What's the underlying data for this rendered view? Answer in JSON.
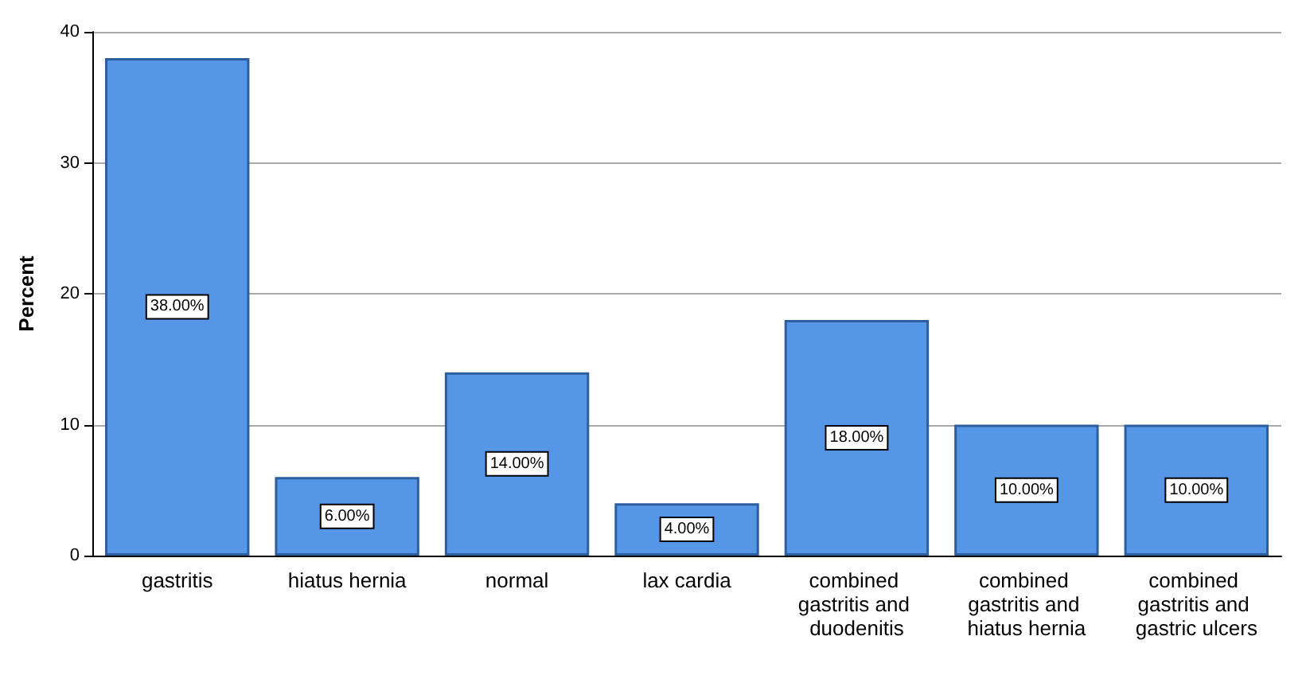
{
  "chart_data": {
    "type": "bar",
    "ylabel": "Percent",
    "categories": [
      "gastritis",
      "hiatus hernia",
      "normal",
      "lax cardia",
      "combined gastritis and duodenitis",
      "combined gastritis and hiatus hernia",
      "combined gastritis and gastric ulcers"
    ],
    "values": [
      38,
      6,
      14,
      4,
      18,
      10,
      10
    ],
    "value_labels": [
      "38.00%",
      "6.00%",
      "14.00%",
      "4.00%",
      "18.00%",
      "10.00%",
      "10.00%"
    ],
    "color": "#5596e6",
    "ylim": [
      0,
      40
    ],
    "yticks": [
      0,
      10,
      20,
      30,
      40
    ],
    "grid": "y"
  }
}
